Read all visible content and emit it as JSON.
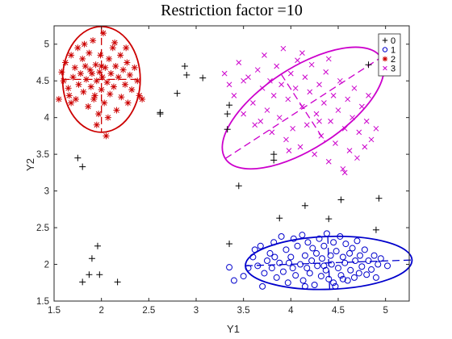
{
  "chart_data": {
    "type": "scatter",
    "title": "Restriction factor =10",
    "xlabel": "Y1",
    "ylabel": "Y2",
    "xlim": [
      1.5,
      5.25
    ],
    "ylim": [
      1.5,
      5.25
    ],
    "xticks": [
      1.5,
      2,
      2.5,
      3,
      3.5,
      4,
      4.5,
      5
    ],
    "yticks": [
      1.5,
      2,
      2.5,
      3,
      3.5,
      4,
      4.5,
      5
    ],
    "xtick_labels": [
      "1.5",
      "2",
      "2.5",
      "3",
      "3.5",
      "4",
      "4.5",
      "5"
    ],
    "ytick_labels": [
      "1.5",
      "2",
      "2.5",
      "3",
      "3.5",
      "4",
      "4.5",
      "5"
    ],
    "grid": false,
    "legend_position": "top-right",
    "series": [
      {
        "name": "0",
        "marker": "plus",
        "color": "#000000",
        "points": [
          [
            1.75,
            3.45
          ],
          [
            1.8,
            3.33
          ],
          [
            1.8,
            1.76
          ],
          [
            1.87,
            1.86
          ],
          [
            1.9,
            2.08
          ],
          [
            1.96,
            2.25
          ],
          [
            1.98,
            1.86
          ],
          [
            2.17,
            1.76
          ],
          [
            2.62,
            4.07
          ],
          [
            2.62,
            4.05
          ],
          [
            2.8,
            4.33
          ],
          [
            2.88,
            4.7
          ],
          [
            2.9,
            4.58
          ],
          [
            3.07,
            4.54
          ],
          [
            3.33,
            3.84
          ],
          [
            3.33,
            4.05
          ],
          [
            3.35,
            2.28
          ],
          [
            3.35,
            4.17
          ],
          [
            3.45,
            3.07
          ],
          [
            3.82,
            3.5
          ],
          [
            3.82,
            3.42
          ],
          [
            3.88,
            2.63
          ],
          [
            4.15,
            2.8
          ],
          [
            4.4,
            2.62
          ],
          [
            4.53,
            2.88
          ],
          [
            4.82,
            4.72
          ],
          [
            4.9,
            2.47
          ],
          [
            4.93,
            2.9
          ]
        ]
      },
      {
        "name": "1",
        "marker": "circle",
        "color": "#0000cc",
        "points": [
          [
            3.35,
            1.96
          ],
          [
            3.4,
            1.78
          ],
          [
            3.5,
            1.84
          ],
          [
            3.55,
            1.95
          ],
          [
            3.6,
            2.1
          ],
          [
            3.62,
            2.2
          ],
          [
            3.65,
            1.98
          ],
          [
            3.68,
            2.25
          ],
          [
            3.7,
            1.7
          ],
          [
            3.72,
            1.88
          ],
          [
            3.75,
            2.05
          ],
          [
            3.78,
            2.15
          ],
          [
            3.8,
            1.95
          ],
          [
            3.82,
            2.3
          ],
          [
            3.83,
            2.1
          ],
          [
            3.85,
            1.82
          ],
          [
            3.88,
            2.02
          ],
          [
            3.9,
            2.38
          ],
          [
            3.92,
            1.9
          ],
          [
            3.95,
            2.2
          ],
          [
            3.97,
            1.75
          ],
          [
            4.0,
            2.1
          ],
          [
            4.02,
            1.95
          ],
          [
            4.03,
            2.35
          ],
          [
            4.05,
            1.85
          ],
          [
            4.07,
            2.25
          ],
          [
            4.1,
            2.0
          ],
          [
            4.12,
            2.4
          ],
          [
            4.13,
            1.78
          ],
          [
            4.15,
            2.12
          ],
          [
            4.17,
            1.95
          ],
          [
            4.18,
            2.3
          ],
          [
            4.2,
            1.88
          ],
          [
            4.22,
            2.05
          ],
          [
            4.23,
            2.22
          ],
          [
            4.25,
            1.72
          ],
          [
            4.27,
            2.15
          ],
          [
            4.28,
            1.98
          ],
          [
            4.3,
            2.35
          ],
          [
            4.32,
            1.84
          ],
          [
            4.33,
            2.08
          ],
          [
            4.35,
            2.25
          ],
          [
            4.37,
            1.92
          ],
          [
            4.38,
            2.42
          ],
          [
            4.4,
            1.8
          ],
          [
            4.42,
            2.12
          ],
          [
            4.43,
            2.0
          ],
          [
            4.45,
            2.3
          ],
          [
            4.47,
            1.7
          ],
          [
            4.48,
            2.18
          ],
          [
            4.5,
            1.95
          ],
          [
            4.52,
            2.38
          ],
          [
            4.53,
            1.85
          ],
          [
            4.55,
            2.1
          ],
          [
            4.57,
            2.02
          ],
          [
            4.58,
            2.28
          ],
          [
            4.6,
            1.78
          ],
          [
            4.62,
            2.15
          ],
          [
            4.63,
            1.92
          ],
          [
            4.65,
            2.22
          ],
          [
            4.67,
            1.82
          ],
          [
            4.68,
            2.05
          ],
          [
            4.7,
            2.32
          ],
          [
            4.72,
            1.88
          ],
          [
            4.73,
            2.12
          ],
          [
            4.75,
            1.97
          ],
          [
            4.78,
            2.2
          ],
          [
            4.8,
            1.86
          ],
          [
            4.82,
            2.05
          ],
          [
            4.85,
            1.93
          ],
          [
            4.88,
            2.12
          ],
          [
            4.9,
            1.82
          ],
          [
            4.92,
            2.0
          ],
          [
            4.95,
            2.08
          ],
          [
            5.02,
            1.98
          ],
          [
            4.45,
            1.75
          ],
          [
            4.15,
            1.7
          ],
          [
            3.98,
            2.02
          ],
          [
            4.35,
            1.98
          ],
          [
            4.55,
            1.8
          ]
        ]
      },
      {
        "name": "2",
        "marker": "asterisk",
        "color": "#cc0000",
        "points": [
          [
            1.58,
            4.62
          ],
          [
            1.6,
            4.5
          ],
          [
            1.62,
            4.75
          ],
          [
            1.65,
            4.4
          ],
          [
            1.66,
            4.3
          ],
          [
            1.68,
            4.85
          ],
          [
            1.7,
            4.55
          ],
          [
            1.72,
            4.68
          ],
          [
            1.73,
            4.25
          ],
          [
            1.75,
            4.95
          ],
          [
            1.76,
            4.45
          ],
          [
            1.78,
            4.6
          ],
          [
            1.8,
            4.8
          ],
          [
            1.81,
            4.35
          ],
          [
            1.83,
            4.7
          ],
          [
            1.84,
            4.52
          ],
          [
            1.86,
            4.15
          ],
          [
            1.87,
            4.88
          ],
          [
            1.89,
            4.42
          ],
          [
            1.9,
            4.6
          ],
          [
            1.91,
            5.05
          ],
          [
            1.93,
            4.3
          ],
          [
            1.94,
            4.72
          ],
          [
            1.95,
            4.5
          ],
          [
            1.97,
            4.05
          ],
          [
            1.98,
            4.62
          ],
          [
            1.99,
            4.85
          ],
          [
            2.0,
            4.38
          ],
          [
            2.01,
            4.55
          ],
          [
            2.02,
            5.15
          ],
          [
            2.03,
            4.2
          ],
          [
            2.04,
            4.68
          ],
          [
            2.05,
            3.75
          ],
          [
            2.06,
            4.48
          ],
          [
            2.08,
            4.8
          ],
          [
            2.09,
            4.32
          ],
          [
            2.1,
            4.6
          ],
          [
            2.12,
            4.95
          ],
          [
            2.13,
            4.42
          ],
          [
            2.15,
            4.7
          ],
          [
            2.16,
            4.1
          ],
          [
            2.18,
            4.55
          ],
          [
            2.2,
            4.85
          ],
          [
            2.21,
            4.28
          ],
          [
            2.23,
            4.65
          ],
          [
            2.25,
            4.45
          ],
          [
            2.27,
            4.75
          ],
          [
            2.28,
            4.2
          ],
          [
            2.3,
            4.58
          ],
          [
            2.32,
            4.38
          ],
          [
            2.35,
            4.68
          ],
          [
            2.38,
            4.5
          ],
          [
            2.4,
            4.3
          ],
          [
            2.43,
            4.25
          ],
          [
            1.55,
            4.25
          ],
          [
            1.95,
            3.9
          ],
          [
            2.07,
            4.0
          ],
          [
            1.82,
            5.0
          ],
          [
            1.92,
            4.25
          ],
          [
            2.14,
            5.02
          ],
          [
            1.68,
            4.2
          ],
          [
            2.26,
            4.95
          ],
          [
            1.88,
            4.65
          ],
          [
            2.0,
            4.7
          ]
        ]
      },
      {
        "name": "3",
        "marker": "x",
        "color": "#cc00cc",
        "points": [
          [
            3.3,
            4.6
          ],
          [
            3.35,
            4.45
          ],
          [
            3.4,
            4.3
          ],
          [
            3.45,
            4.75
          ],
          [
            3.5,
            4.05
          ],
          [
            3.55,
            4.55
          ],
          [
            3.6,
            4.2
          ],
          [
            3.65,
            4.65
          ],
          [
            3.68,
            3.95
          ],
          [
            3.7,
            4.4
          ],
          [
            3.72,
            4.85
          ],
          [
            3.75,
            4.1
          ],
          [
            3.78,
            4.5
          ],
          [
            3.8,
            3.8
          ],
          [
            3.82,
            4.3
          ],
          [
            3.85,
            4.7
          ],
          [
            3.88,
            4.0
          ],
          [
            3.9,
            4.45
          ],
          [
            3.92,
            4.94
          ],
          [
            3.95,
            3.7
          ],
          [
            3.97,
            4.25
          ],
          [
            4.0,
            4.6
          ],
          [
            4.02,
            3.85
          ],
          [
            4.05,
            4.4
          ],
          [
            4.07,
            4.78
          ],
          [
            4.1,
            3.6
          ],
          [
            4.12,
            4.15
          ],
          [
            4.15,
            4.55
          ],
          [
            4.17,
            3.9
          ],
          [
            4.2,
            4.35
          ],
          [
            4.22,
            4.72
          ],
          [
            4.25,
            3.5
          ],
          [
            4.27,
            4.05
          ],
          [
            4.3,
            4.45
          ],
          [
            4.32,
            3.75
          ],
          [
            4.35,
            4.2
          ],
          [
            4.37,
            4.62
          ],
          [
            4.4,
            3.4
          ],
          [
            4.42,
            3.95
          ],
          [
            4.45,
            4.3
          ],
          [
            4.47,
            3.65
          ],
          [
            4.5,
            4.1
          ],
          [
            4.52,
            4.5
          ],
          [
            4.55,
            3.3
          ],
          [
            4.57,
            3.85
          ],
          [
            4.6,
            4.25
          ],
          [
            4.62,
            3.55
          ],
          [
            4.65,
            4.0
          ],
          [
            4.67,
            4.4
          ],
          [
            4.7,
            3.45
          ],
          [
            4.72,
            3.8
          ],
          [
            4.75,
            4.15
          ],
          [
            4.78,
            3.6
          ],
          [
            4.8,
            3.95
          ],
          [
            4.85,
            3.7
          ],
          [
            4.9,
            3.85
          ],
          [
            4.57,
            3.25
          ],
          [
            4.4,
            4.8
          ],
          [
            3.98,
            3.55
          ],
          [
            3.62,
            3.9
          ],
          [
            4.12,
            4.88
          ],
          [
            4.82,
            4.3
          ],
          [
            3.5,
            4.5
          ],
          [
            4.3,
            3.95
          ]
        ]
      }
    ],
    "ellipses": [
      {
        "series": "2",
        "color": "#cc0000",
        "cx": 2.0,
        "cy": 4.52,
        "rx": 0.41,
        "ry": 0.72,
        "angle": 0
      },
      {
        "series": "3",
        "color": "#cc00cc",
        "cx": 4.13,
        "cy": 4.13,
        "rx": 0.98,
        "ry": 0.55,
        "angle": -33
      },
      {
        "series": "1",
        "color": "#0000cc",
        "cx": 4.4,
        "cy": 2.02,
        "rx": 0.88,
        "ry": 0.36,
        "angle": -2
      }
    ]
  }
}
